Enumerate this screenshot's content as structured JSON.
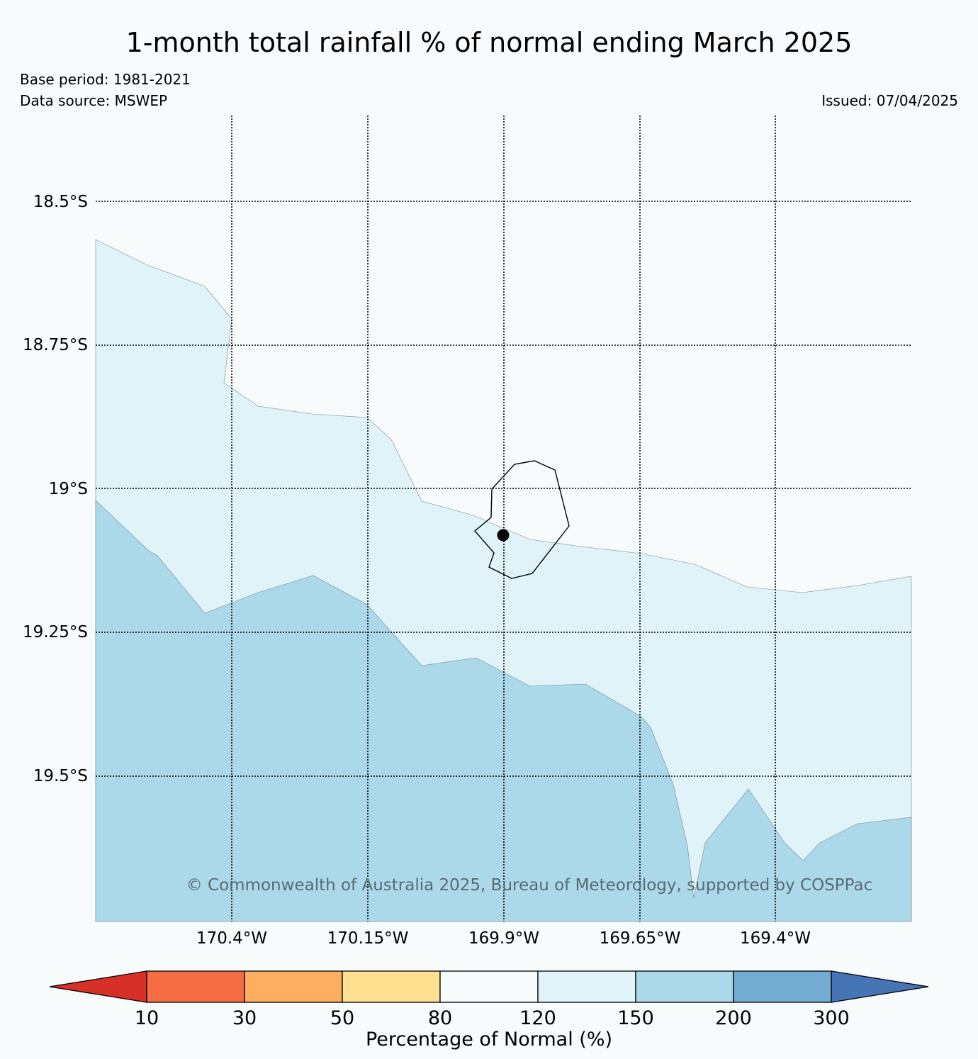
{
  "title": "1-month total rainfall % of normal ending March 2025",
  "base_period": "Base period: 1981-2021",
  "data_source": "Data source: MSWEP",
  "issued": "Issued: 07/04/2025",
  "copyright": "© Commonwealth of Australia 2025, Bureau of Meteorology, supported by COSPPac",
  "lat_labels": [
    "18.5°S",
    "18.75°S",
    "19°S",
    "19.25°S",
    "19.5°S"
  ],
  "lon_labels": [
    "170.4°W",
    "170.15°W",
    "169.9°W",
    "169.65°W",
    "169.4°W"
  ],
  "colorbar": {
    "title": "Percentage of Normal (%)",
    "ticks": [
      "10",
      "30",
      "50",
      "80",
      "120",
      "150",
      "200",
      "300"
    ],
    "colors": [
      "#d73027",
      "#f46d43",
      "#fdae61",
      "#fee090",
      "#f7fbfc",
      "#e0f3f8",
      "#abd9e9",
      "#74add1",
      "#4575b4"
    ]
  },
  "zones": {
    "band_120_150": "#e0f3f8",
    "band_150_200": "#abd9e9",
    "background": "#f7fbfc"
  }
}
